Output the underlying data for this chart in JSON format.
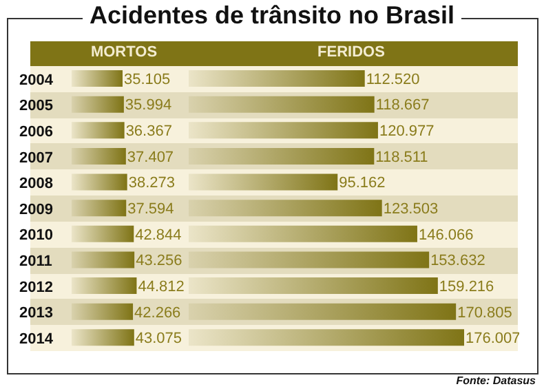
{
  "chart_data": [
    {
      "type": "bar",
      "orientation": "horizontal",
      "title": "Acidentes de trânsito no Brasil",
      "subtitle": "MORTOS",
      "categories": [
        "2004",
        "2005",
        "2006",
        "2007",
        "2008",
        "2009",
        "2010",
        "2011",
        "2012",
        "2013",
        "2014"
      ],
      "color": "#7f7416",
      "tick_labels": "y",
      "values": [
        35105,
        35994,
        36367,
        37407,
        38273,
        37594,
        42844,
        43256,
        44812,
        42266,
        43075
      ],
      "value_labels": [
        "35.105",
        "35.994",
        "36.367",
        "37.407",
        "38.273",
        "37.594",
        "42.844",
        "43.256",
        "44.812",
        "42.266",
        "43.075"
      ]
    },
    {
      "type": "bar",
      "orientation": "horizontal",
      "subtitle": "FERIDOS",
      "categories": [
        "2004",
        "2005",
        "2006",
        "2007",
        "2008",
        "2009",
        "2010",
        "2011",
        "2012",
        "2013",
        "2014"
      ],
      "color": "#7f7416",
      "tick_labels": false,
      "values": [
        112520,
        118667,
        120977,
        118511,
        95162,
        123503,
        146066,
        153632,
        159216,
        170805,
        176007
      ],
      "value_labels": [
        "112.520",
        "118.667",
        "120.977",
        "118.511",
        "95.162",
        "123.503",
        "146.066",
        "153.632",
        "159.216",
        "170.805",
        "176.007"
      ],
      "annotations": [
        "Fonte: Datasus"
      ]
    }
  ]
}
